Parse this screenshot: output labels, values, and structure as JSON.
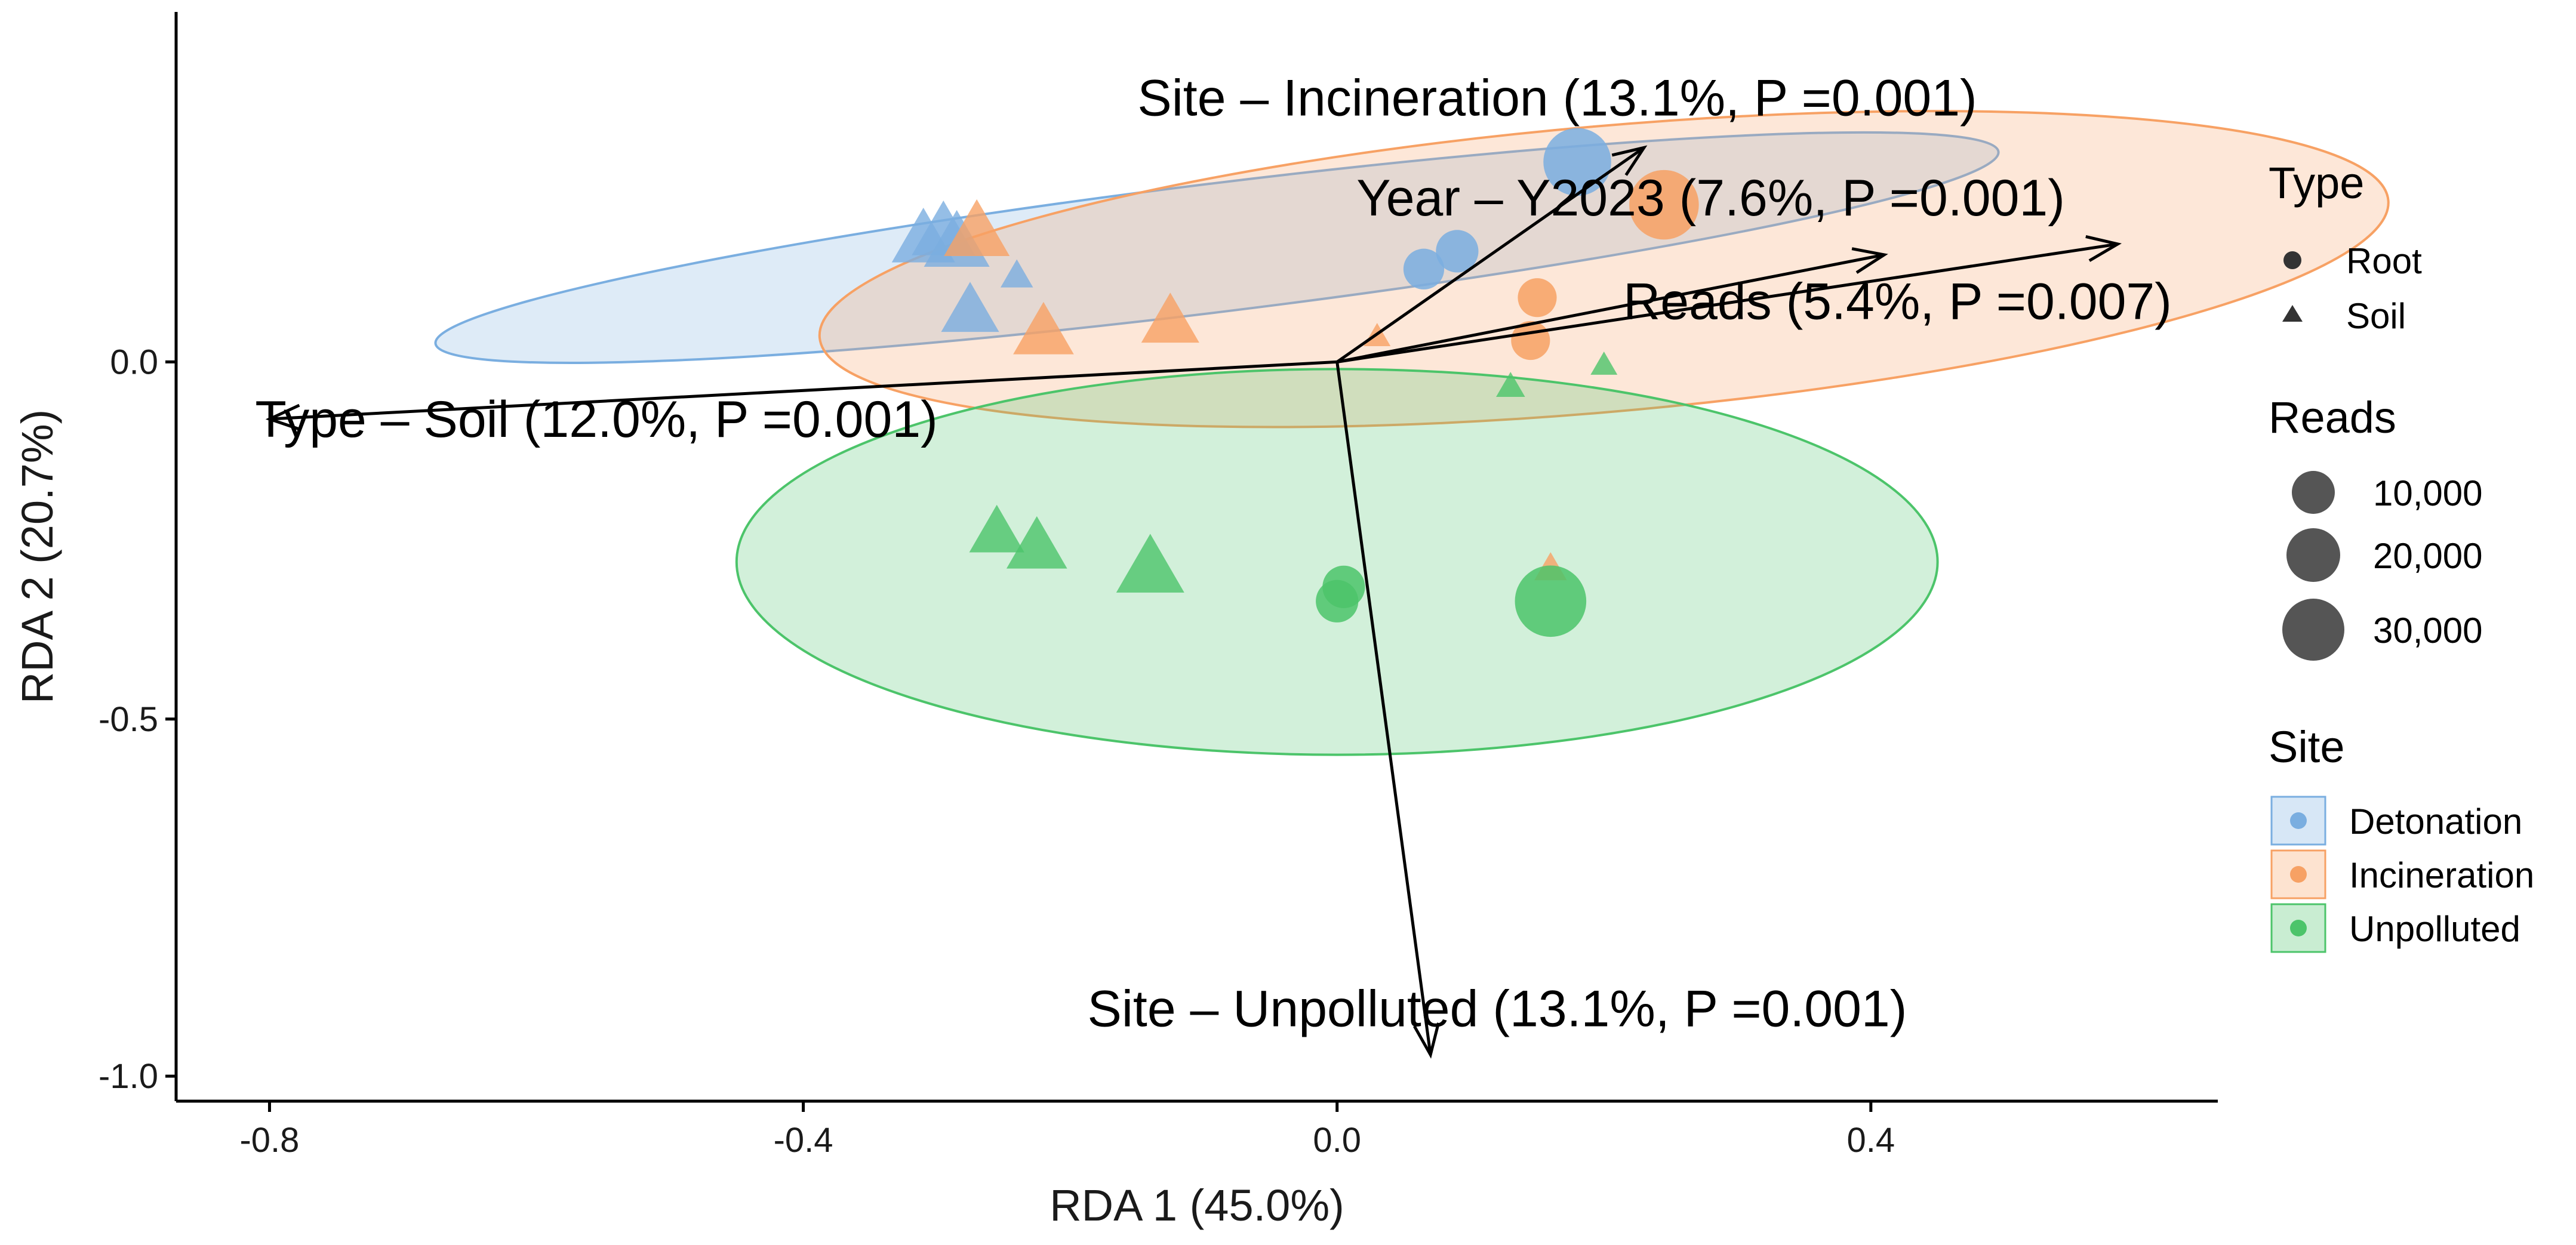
{
  "chart_data": {
    "type": "scatter",
    "subtype": "RDA biplot",
    "xlabel": "RDA 1 (45.0%)",
    "ylabel": "RDA 2 (20.7%)",
    "xlim": [
      -0.87,
      0.66
    ],
    "ylim": [
      -1.035,
      0.49
    ],
    "x_ticks": [
      -0.8,
      -0.4,
      0.0,
      0.4
    ],
    "x_tick_labels": [
      "-0.8",
      "-0.4",
      "0.0",
      "0.4"
    ],
    "y_ticks": [
      -1.0,
      -0.5,
      0.0
    ],
    "y_tick_labels": [
      "-1.0",
      "-0.5",
      "0.0"
    ],
    "grid": false,
    "sites": [
      {
        "name": "Detonation",
        "color": "#7aaee0"
      },
      {
        "name": "Incineration",
        "color": "#f7a164"
      },
      {
        "name": "Unpolluted",
        "color": "#4cc46a"
      }
    ],
    "ellipses": [
      {
        "site": "Detonation",
        "cx": -0.09,
        "cy": 0.16,
        "rx": 0.59,
        "ry": 0.09,
        "angle_deg": 7
      },
      {
        "site": "Incineration",
        "cx": 0.2,
        "cy": 0.13,
        "rx": 0.59,
        "ry": 0.2,
        "angle_deg": 5
      },
      {
        "site": "Unpolluted",
        "cx": 0.0,
        "cy": -0.28,
        "rx": 0.45,
        "ry": 0.27,
        "angle_deg": 0
      }
    ],
    "points": [
      {
        "site": "Detonation",
        "type": "Soil",
        "x": -0.31,
        "y": 0.17,
        "reads": 20000
      },
      {
        "site": "Detonation",
        "type": "Soil",
        "x": -0.295,
        "y": 0.18,
        "reads": 20000
      },
      {
        "site": "Detonation",
        "type": "Soil",
        "x": -0.285,
        "y": 0.165,
        "reads": 22000
      },
      {
        "site": "Detonation",
        "type": "Soil",
        "x": -0.275,
        "y": 0.07,
        "reads": 16000
      },
      {
        "site": "Detonation",
        "type": "Soil",
        "x": -0.24,
        "y": 0.12,
        "reads": 3000
      },
      {
        "site": "Detonation",
        "type": "Root",
        "x": 0.065,
        "y": 0.13,
        "reads": 8000
      },
      {
        "site": "Detonation",
        "type": "Root",
        "x": 0.09,
        "y": 0.155,
        "reads": 9000
      },
      {
        "site": "Detonation",
        "type": "Root",
        "x": 0.18,
        "y": 0.28,
        "reads": 30000
      },
      {
        "site": "Incineration",
        "type": "Soil",
        "x": -0.27,
        "y": 0.18,
        "reads": 22000
      },
      {
        "site": "Incineration",
        "type": "Soil",
        "x": -0.22,
        "y": 0.04,
        "reads": 18000
      },
      {
        "site": "Incineration",
        "type": "Soil",
        "x": -0.125,
        "y": 0.055,
        "reads": 16000
      },
      {
        "site": "Incineration",
        "type": "Soil",
        "x": 0.03,
        "y": 0.035,
        "reads": 1500
      },
      {
        "site": "Incineration",
        "type": "Soil",
        "x": 0.16,
        "y": -0.29,
        "reads": 3000
      },
      {
        "site": "Incineration",
        "type": "Root",
        "x": 0.15,
        "y": 0.09,
        "reads": 7000
      },
      {
        "site": "Incineration",
        "type": "Root",
        "x": 0.145,
        "y": 0.03,
        "reads": 7000
      },
      {
        "site": "Incineration",
        "type": "Root",
        "x": 0.245,
        "y": 0.22,
        "reads": 32000
      },
      {
        "site": "Unpolluted",
        "type": "Soil",
        "x": -0.255,
        "y": -0.24,
        "reads": 14000
      },
      {
        "site": "Unpolluted",
        "type": "Soil",
        "x": -0.225,
        "y": -0.26,
        "reads": 18000
      },
      {
        "site": "Unpolluted",
        "type": "Soil",
        "x": -0.14,
        "y": -0.29,
        "reads": 24000
      },
      {
        "site": "Unpolluted",
        "type": "Soil",
        "x": 0.13,
        "y": -0.035,
        "reads": 2000
      },
      {
        "site": "Unpolluted",
        "type": "Soil",
        "x": 0.2,
        "y": -0.005,
        "reads": 1500
      },
      {
        "site": "Unpolluted",
        "type": "Root",
        "x": 0.005,
        "y": -0.315,
        "reads": 9000
      },
      {
        "site": "Unpolluted",
        "type": "Root",
        "x": 0.0,
        "y": -0.335,
        "reads": 9000
      },
      {
        "site": "Unpolluted",
        "type": "Root",
        "x": 0.16,
        "y": -0.335,
        "reads": 34000
      }
    ],
    "vectors": [
      {
        "label": "Site – Incineration (13.1%, P =0.001)",
        "x": 0.23,
        "y": 0.3,
        "label_x": 0.165,
        "label_y": 0.37
      },
      {
        "label": "Year – Y2023 (7.6%, P =0.001)",
        "x": 0.41,
        "y": 0.15,
        "label_x": 0.28,
        "label_y": 0.23
      },
      {
        "label": "Reads (5.4%, P =0.007)",
        "x": 0.585,
        "y": 0.165,
        "label_x": 0.42,
        "label_y": 0.085
      },
      {
        "label": "Type – Soil (12.0%, P =0.001)",
        "x": -0.8,
        "y": -0.08,
        "label_x": -0.555,
        "label_y": -0.08
      },
      {
        "label": "Site – Unpolluted (13.1%, P =0.001)",
        "x": 0.07,
        "y": -0.97,
        "label_x": 0.12,
        "label_y": -0.905
      }
    ],
    "legend": {
      "position": "right",
      "type": {
        "title": "Type",
        "items": [
          "Root",
          "Soil"
        ]
      },
      "reads": {
        "title": "Reads",
        "items": [
          "10,000",
          "20,000",
          "30,000"
        ],
        "values": [
          10000,
          20000,
          30000
        ]
      },
      "site": {
        "title": "Site",
        "items": [
          "Detonation",
          "Incineration",
          "Unpolluted"
        ]
      }
    }
  }
}
